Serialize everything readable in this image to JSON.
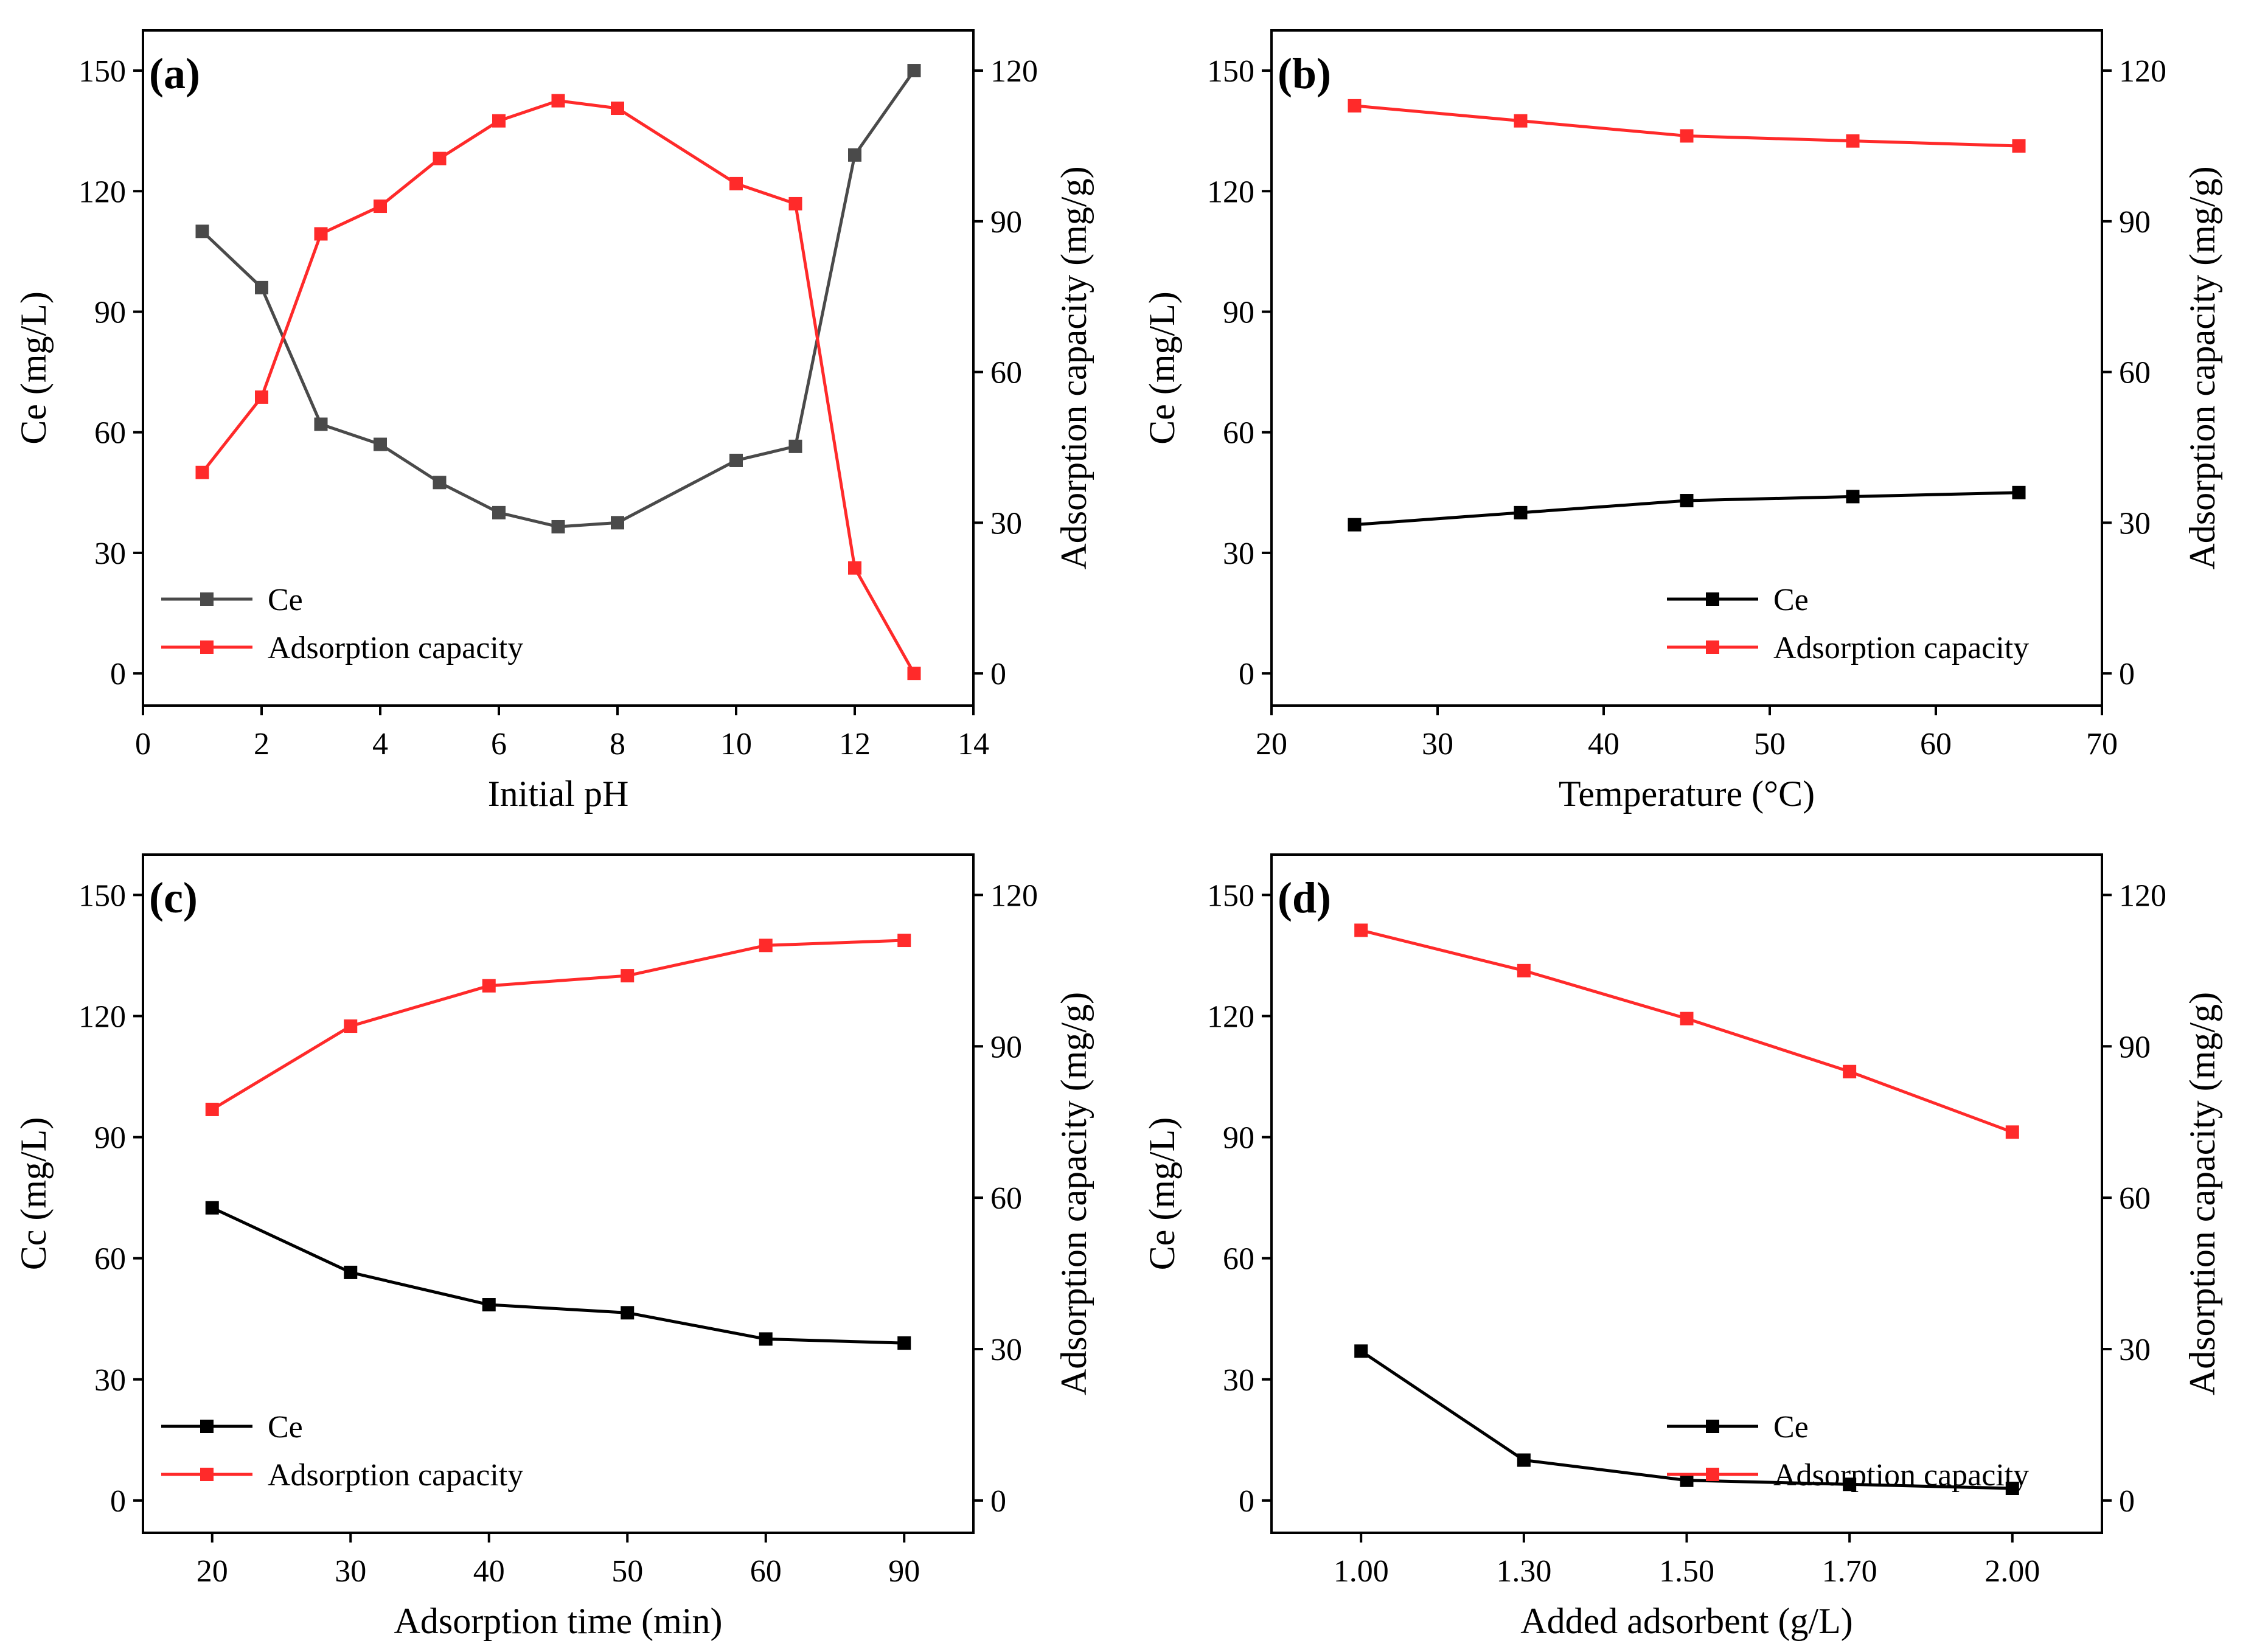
{
  "colors": {
    "ce_dark": "#4a4a4a",
    "ce_black": "#000000",
    "capacity": "#ff2a2a",
    "axis": "#000000"
  },
  "chart_data": [
    {
      "type": "line",
      "label": "(a)",
      "xlabel": "Initial pH",
      "ylabel": "Ce (mg/L)",
      "y2label": "Adsorption capacity (mg/g)",
      "xlim": [
        0,
        14
      ],
      "ylim": [
        -8,
        160
      ],
      "y2lim": [
        -6.4,
        128
      ],
      "xticks": [
        {
          "v": 0,
          "label": "0"
        },
        {
          "v": 2,
          "label": "2"
        },
        {
          "v": 4,
          "label": "4"
        },
        {
          "v": 6,
          "label": "6"
        },
        {
          "v": 8,
          "label": "8"
        },
        {
          "v": 10,
          "label": "10"
        },
        {
          "v": 12,
          "label": "12"
        },
        {
          "v": 14,
          "label": "14"
        }
      ],
      "yticks": [
        {
          "v": 0,
          "label": "0"
        },
        {
          "v": 30,
          "label": "30"
        },
        {
          "v": 60,
          "label": "60"
        },
        {
          "v": 90,
          "label": "90"
        },
        {
          "v": 120,
          "label": "120"
        },
        {
          "v": 150,
          "label": "150"
        }
      ],
      "y2ticks": [
        {
          "v": 0,
          "label": "0"
        },
        {
          "v": 30,
          "label": "30"
        },
        {
          "v": 60,
          "label": "60"
        },
        {
          "v": 90,
          "label": "90"
        },
        {
          "v": 120,
          "label": "120"
        }
      ],
      "legend_position": "bottom-left",
      "legend": [
        "Ce",
        "Adsorption capacity"
      ],
      "series": [
        {
          "name": "Ce",
          "axis": "left",
          "color": "#4a4a4a",
          "x": [
            1,
            2,
            3,
            4,
            5,
            6,
            7,
            8,
            10,
            11,
            12,
            13
          ],
          "values": [
            110,
            96,
            62,
            57,
            47.5,
            40,
            36.5,
            37.5,
            53,
            56.5,
            129,
            150
          ]
        },
        {
          "name": "Adsorption capacity",
          "axis": "right",
          "color": "#ff2a2a",
          "x": [
            1,
            2,
            3,
            4,
            5,
            6,
            7,
            8,
            10,
            11,
            12,
            13
          ],
          "values": [
            40,
            55,
            87.5,
            93,
            102.5,
            110,
            114,
            112.5,
            97.5,
            93.5,
            21,
            0
          ]
        }
      ]
    },
    {
      "type": "line",
      "label": "(b)",
      "xlabel": "Temperature (°C)",
      "ylabel": "Ce (mg/L)",
      "y2label": "Adsorption capacity (mg/g)",
      "xlim": [
        20,
        70
      ],
      "ylim": [
        -8,
        160
      ],
      "y2lim": [
        -6.4,
        128
      ],
      "xticks": [
        {
          "v": 20,
          "label": "20"
        },
        {
          "v": 30,
          "label": "30"
        },
        {
          "v": 40,
          "label": "40"
        },
        {
          "v": 50,
          "label": "50"
        },
        {
          "v": 60,
          "label": "60"
        },
        {
          "v": 70,
          "label": "70"
        }
      ],
      "yticks": [
        {
          "v": 0,
          "label": "0"
        },
        {
          "v": 30,
          "label": "30"
        },
        {
          "v": 60,
          "label": "60"
        },
        {
          "v": 90,
          "label": "90"
        },
        {
          "v": 120,
          "label": "120"
        },
        {
          "v": 150,
          "label": "150"
        }
      ],
      "y2ticks": [
        {
          "v": 0,
          "label": "0"
        },
        {
          "v": 30,
          "label": "30"
        },
        {
          "v": 60,
          "label": "60"
        },
        {
          "v": 90,
          "label": "90"
        },
        {
          "v": 120,
          "label": "120"
        }
      ],
      "legend_position": "bottom-right",
      "legend": [
        "Ce",
        "Adsorption capacity"
      ],
      "series": [
        {
          "name": "Ce",
          "axis": "left",
          "color": "#000000",
          "x": [
            25,
            35,
            45,
            55,
            65
          ],
          "values": [
            37,
            40,
            43,
            44,
            45
          ]
        },
        {
          "name": "Adsorption capacity",
          "axis": "right",
          "color": "#ff2a2a",
          "x": [
            25,
            35,
            45,
            55,
            65
          ],
          "values": [
            113,
            110,
            107,
            106,
            105
          ]
        }
      ]
    },
    {
      "type": "line",
      "label": "(c)",
      "xlabel": "Adsorption time (min)",
      "ylabel": "Cc (mg/L)",
      "y2label": "Adsorption capacity (mg/g)",
      "xlim": [
        -0.5,
        5.5
      ],
      "ylim": [
        -8,
        160
      ],
      "y2lim": [
        -6.4,
        128
      ],
      "xticks": [
        {
          "v": 0,
          "label": "20"
        },
        {
          "v": 1,
          "label": "30"
        },
        {
          "v": 2,
          "label": "40"
        },
        {
          "v": 3,
          "label": "50"
        },
        {
          "v": 4,
          "label": "60"
        },
        {
          "v": 5,
          "label": "90"
        }
      ],
      "yticks": [
        {
          "v": 0,
          "label": "0"
        },
        {
          "v": 30,
          "label": "30"
        },
        {
          "v": 60,
          "label": "60"
        },
        {
          "v": 90,
          "label": "90"
        },
        {
          "v": 120,
          "label": "120"
        },
        {
          "v": 150,
          "label": "150"
        }
      ],
      "y2ticks": [
        {
          "v": 0,
          "label": "0"
        },
        {
          "v": 30,
          "label": "30"
        },
        {
          "v": 60,
          "label": "60"
        },
        {
          "v": 90,
          "label": "90"
        },
        {
          "v": 120,
          "label": "120"
        }
      ],
      "legend_position": "bottom-left",
      "legend": [
        "Ce",
        "Adsorption capacity"
      ],
      "categories": [
        "20",
        "30",
        "40",
        "50",
        "60",
        "90"
      ],
      "series": [
        {
          "name": "Ce",
          "axis": "left",
          "color": "#000000",
          "x": [
            0,
            1,
            2,
            3,
            4,
            5
          ],
          "values": [
            72.5,
            56.5,
            48.5,
            46.5,
            40,
            39
          ]
        },
        {
          "name": "Adsorption capacity",
          "axis": "right",
          "color": "#ff2a2a",
          "x": [
            0,
            1,
            2,
            3,
            4,
            5
          ],
          "values": [
            77.5,
            94,
            102,
            104,
            110,
            111
          ]
        }
      ]
    },
    {
      "type": "line",
      "label": "(d)",
      "xlabel": "Added adsorbent (g/L)",
      "ylabel": "Ce (mg/L)",
      "y2label": "Adsorption capacity (mg/g)",
      "xlim": [
        -0.55,
        4.55
      ],
      "ylim": [
        -8,
        160
      ],
      "y2lim": [
        -6.4,
        128
      ],
      "xticks": [
        {
          "v": 0,
          "label": "1.00"
        },
        {
          "v": 1,
          "label": "1.30"
        },
        {
          "v": 2,
          "label": "1.50"
        },
        {
          "v": 3,
          "label": "1.70"
        },
        {
          "v": 4,
          "label": "2.00"
        }
      ],
      "yticks": [
        {
          "v": 0,
          "label": "0"
        },
        {
          "v": 30,
          "label": "30"
        },
        {
          "v": 60,
          "label": "60"
        },
        {
          "v": 90,
          "label": "90"
        },
        {
          "v": 120,
          "label": "120"
        },
        {
          "v": 150,
          "label": "150"
        }
      ],
      "y2ticks": [
        {
          "v": 0,
          "label": "0"
        },
        {
          "v": 30,
          "label": "30"
        },
        {
          "v": 60,
          "label": "60"
        },
        {
          "v": 90,
          "label": "90"
        },
        {
          "v": 120,
          "label": "120"
        }
      ],
      "legend_position": "bottom-right",
      "legend": [
        "Ce",
        "Adsorption capacity"
      ],
      "categories": [
        "1.00",
        "1.30",
        "1.50",
        "1.70",
        "2.00"
      ],
      "series": [
        {
          "name": "Ce",
          "axis": "left",
          "color": "#000000",
          "x": [
            0,
            1,
            2,
            3,
            4
          ],
          "values": [
            37,
            10,
            5,
            4,
            3
          ]
        },
        {
          "name": "Adsorption capacity",
          "axis": "right",
          "color": "#ff2a2a",
          "x": [
            0,
            1,
            2,
            3,
            4
          ],
          "values": [
            113,
            105,
            95.5,
            85,
            73
          ]
        }
      ]
    }
  ]
}
